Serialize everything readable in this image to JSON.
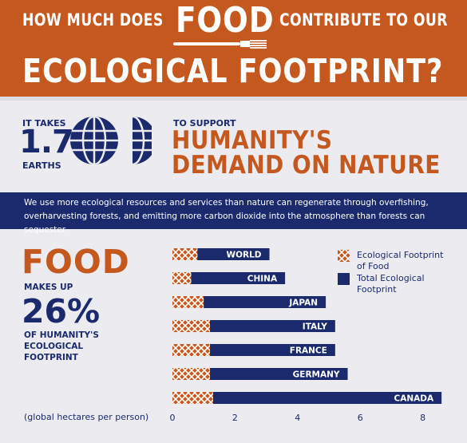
{
  "header": {
    "line1_left": "HOW MUCH DOES",
    "line1_food": "FOOD",
    "line1_right": "CONTRIBUTE TO OUR",
    "line2": "ECOLOGICAL FOOTPRINT?"
  },
  "earths": {
    "it_takes": "IT TAKES",
    "number": "1.7",
    "earths": "EARTHS",
    "to_support": "TO SUPPORT",
    "demand_line1": "HUMANITY'S",
    "demand_line2": "DEMAND ON NATURE"
  },
  "band_text": "We use more ecological resources and services than nature can regenerate through overfishing, overharvesting forests, and emitting more carbon dioxide into the atmosphere than forests can sequester.",
  "food_stat": {
    "food": "FOOD",
    "makes_up": "MAKES UP",
    "percent": "26%",
    "line1": "OF HUMANITY'S",
    "line2": "ECOLOGICAL",
    "line3": "FOOTPRINT"
  },
  "colors": {
    "orange": "#c4581f",
    "navy": "#1a2a6c",
    "background": "#ececf0"
  },
  "chart_data": {
    "type": "bar",
    "orientation": "horizontal",
    "categories": [
      "WORLD",
      "CHINA",
      "JAPAN",
      "ITALY",
      "FRANCE",
      "GERMANY",
      "CANADA"
    ],
    "series": [
      {
        "name": "Ecological Footprint of Food",
        "values": [
          0.8,
          0.6,
          1.0,
          1.2,
          1.2,
          1.2,
          1.3
        ]
      },
      {
        "name": "Total Ecological Footprint",
        "values": [
          3.1,
          3.6,
          4.9,
          5.2,
          5.2,
          5.6,
          8.6
        ]
      }
    ],
    "x_ticks": [
      "0",
      "2",
      "4",
      "6",
      "8"
    ],
    "xlim": [
      0,
      9
    ],
    "unit_label": "(global hectares per person)",
    "legend_position": "right"
  }
}
